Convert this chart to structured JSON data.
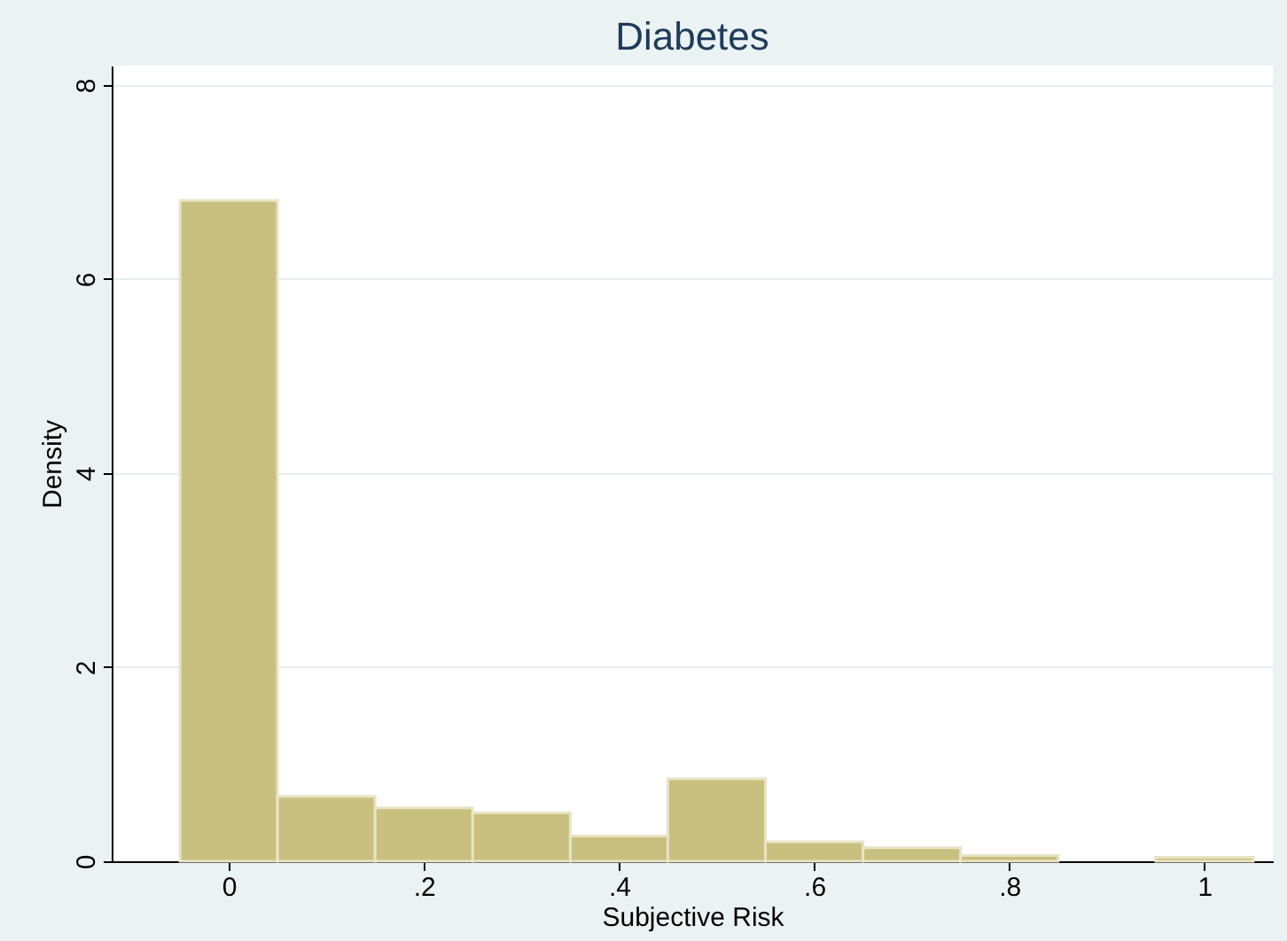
{
  "chart_data": {
    "type": "histogram",
    "title": "Diabetes",
    "xlabel": "Subjective Risk",
    "ylabel": "Density",
    "bins": [
      -0.05,
      0.05,
      0.15,
      0.25,
      0.35,
      0.45,
      0.55,
      0.65,
      0.75,
      0.85,
      0.95,
      1.05
    ],
    "values": [
      6.81,
      0.67,
      0.55,
      0.5,
      0.26,
      0.85,
      0.2,
      0.14,
      0.06,
      0,
      0.04
    ],
    "color": "#c9c07f",
    "xlim": [
      -0.12,
      1.07
    ],
    "xticks": [
      {
        "value": 0,
        "label": "0"
      },
      {
        "value": 0.2,
        "label": ".2"
      },
      {
        "value": 0.4,
        "label": ".4"
      },
      {
        "value": 0.6,
        "label": ".6"
      },
      {
        "value": 0.8,
        "label": ".8"
      },
      {
        "value": 1,
        "label": "1"
      }
    ],
    "ylim": [
      0,
      8.2
    ],
    "yticks": [
      0,
      2,
      4,
      6,
      8
    ],
    "grid": "y"
  }
}
